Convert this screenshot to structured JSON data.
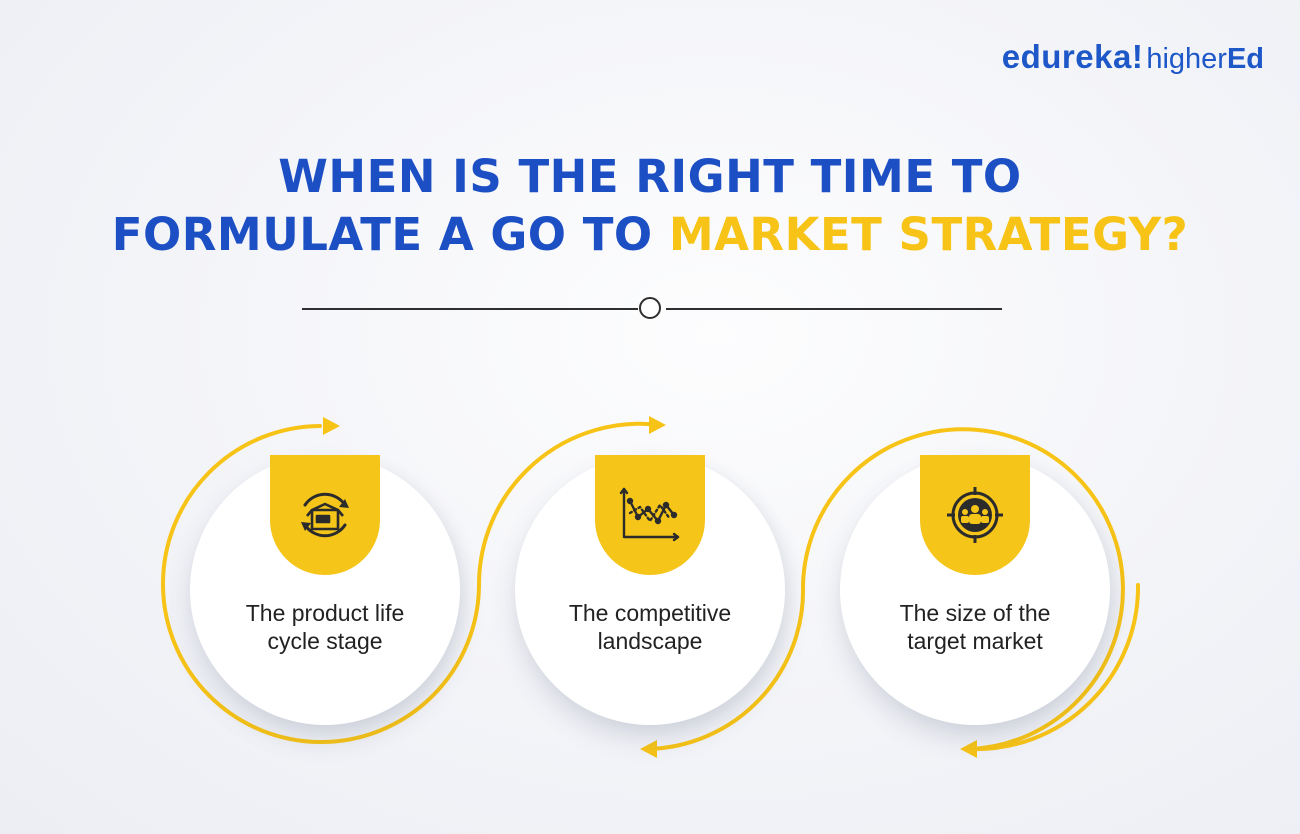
{
  "brand": {
    "name": "edureka!",
    "suffix": "higher",
    "suffix_bold": "Ed"
  },
  "title": {
    "line1": "WHEN IS THE RIGHT TIME TO",
    "line2_prefix": "FORMULATE A GO TO ",
    "line2_highlight": "MARKET STRATEGY?"
  },
  "colors": {
    "primary": "#1d4fc4",
    "accent": "#f7c316",
    "text": "#222222"
  },
  "cards": [
    {
      "label": "The product life\ncycle stage",
      "icon": "product-box-cycle-icon"
    },
    {
      "label": "The competitive\nlandscape",
      "icon": "line-chart-icon"
    },
    {
      "label": "The size of the\ntarget market",
      "icon": "target-audience-icon"
    }
  ]
}
